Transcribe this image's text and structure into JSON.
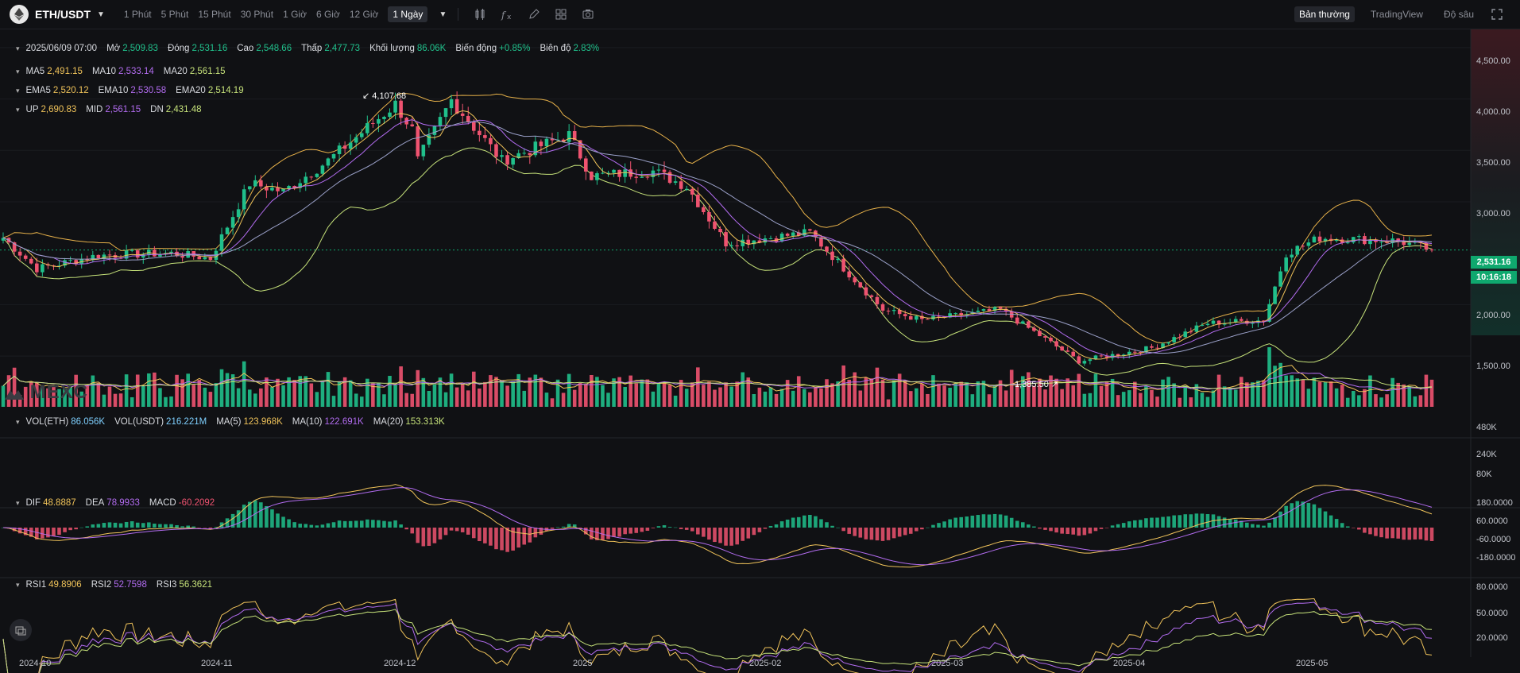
{
  "header": {
    "pair": "ETH/USDT",
    "intervals": [
      "1 Phút",
      "5 Phút",
      "15 Phút",
      "30 Phút",
      "1 Giờ",
      "6 Giờ",
      "12 Giờ",
      "1 Ngày"
    ],
    "active_interval": "1 Ngày",
    "views": [
      "Bản thường",
      "TradingView",
      "Độ sâu"
    ],
    "active_view": "Bản thường"
  },
  "ohlc": {
    "date": "2025/06/09 07:00",
    "open_label": "Mở",
    "open": "2,509.83",
    "close_label": "Đóng",
    "close": "2,531.16",
    "high_label": "Cao",
    "high": "2,548.66",
    "low_label": "Thấp",
    "low": "2,477.73",
    "volume_label": "Khối lượng",
    "volume": "86.06K",
    "change_label": "Biến động",
    "change": "+0.85%",
    "amplitude_label": "Biên độ",
    "amplitude": "2.83%"
  },
  "ma": {
    "ma5_label": "MA5",
    "ma5": "2,491.15",
    "ma10_label": "MA10",
    "ma10": "2,533.14",
    "ma20_label": "MA20",
    "ma20": "2,561.15"
  },
  "ema": {
    "ema5_label": "EMA5",
    "ema5": "2,520.12",
    "ema10_label": "EMA10",
    "ema10": "2,530.58",
    "ema20_label": "EMA20",
    "ema20": "2,514.19"
  },
  "boll": {
    "up_label": "UP",
    "up": "2,690.83",
    "mid_label": "MID",
    "mid": "2,561.15",
    "dn_label": "DN",
    "dn": "2,431.48"
  },
  "vol": {
    "eth_label": "VOL(ETH)",
    "eth": "86.056K",
    "usdt_label": "VOL(USDT)",
    "usdt": "216.221M",
    "ma5_label": "MA(5)",
    "ma5": "123.968K",
    "ma10_label": "MA(10)",
    "ma10": "122.691K",
    "ma20_label": "MA(20)",
    "ma20": "153.313K"
  },
  "macd": {
    "dif_label": "DIF",
    "dif": "48.8887",
    "dea_label": "DEA",
    "dea": "78.9933",
    "macd_label": "MACD",
    "macd": "-60.2092"
  },
  "rsi": {
    "rsi1_label": "RSI1",
    "rsi1": "49.8906",
    "rsi2_label": "RSI2",
    "rsi2": "52.7598",
    "rsi3_label": "RSI3",
    "rsi3": "56.3621"
  },
  "annotations": {
    "high_mark": "4,107.68",
    "low_mark": "1,385.50"
  },
  "current_price": "2,531.16",
  "countdown": "10:16:18",
  "watermark": "MEXC",
  "axes": {
    "price_ticks": [
      "4,500.00",
      "4,000.00",
      "3,500.00",
      "3,000.00",
      "2,000.00",
      "1,500.00"
    ],
    "volume_ticks": [
      "480K",
      "240K",
      "80K"
    ],
    "macd_ticks": [
      "180.0000",
      "60.0000",
      "-60.0000",
      "-180.0000"
    ],
    "rsi_ticks": [
      "80.0000",
      "50.0000",
      "20.0000"
    ],
    "date_ticks": [
      "2024-10",
      "2024-11",
      "2024-12",
      "2025",
      "2025-02",
      "2025-03",
      "2025-04",
      "2025-05"
    ]
  },
  "colors": {
    "up": "#20c08b",
    "down": "#ef5370",
    "ma5": "#f0c35a",
    "ma10": "#b26cf0",
    "ma20": "#c6e27a",
    "boll": "#e8b24a"
  },
  "chart_data": {
    "type": "candlestick",
    "anchors": [
      {
        "date": "2024-09-27",
        "close": 2650
      },
      {
        "date": "2024-10-03",
        "close": 2350
      },
      {
        "date": "2024-10-14",
        "close": 2480
      },
      {
        "date": "2024-10-27",
        "close": 2500
      },
      {
        "date": "2024-11-03",
        "close": 2450
      },
      {
        "date": "2024-11-10",
        "close": 3180
      },
      {
        "date": "2024-11-16",
        "close": 3100
      },
      {
        "date": "2024-11-24",
        "close": 3400
      },
      {
        "date": "2024-12-06",
        "close": 3950
      },
      {
        "date": "2024-12-09",
        "close": 3700
      },
      {
        "date": "2024-12-10",
        "close": 3400
      },
      {
        "date": "2024-12-16",
        "close": 3990
      },
      {
        "date": "2024-12-25",
        "close": 3400
      },
      {
        "date": "2025-01-06",
        "close": 3650
      },
      {
        "date": "2025-01-10",
        "close": 3250
      },
      {
        "date": "2025-01-21",
        "close": 3300
      },
      {
        "date": "2025-01-27",
        "close": 3150
      },
      {
        "date": "2025-02-03",
        "close": 2600
      },
      {
        "date": "2025-02-18",
        "close": 2700
      },
      {
        "date": "2025-02-25",
        "close": 2300
      },
      {
        "date": "2025-03-03",
        "close": 1950
      },
      {
        "date": "2025-03-10",
        "close": 1850
      },
      {
        "date": "2025-03-24",
        "close": 1950
      },
      {
        "date": "2025-04-07",
        "close": 1450
      },
      {
        "date": "2025-04-20",
        "close": 1580
      },
      {
        "date": "2025-04-30",
        "close": 1820
      },
      {
        "date": "2025-05-10",
        "close": 1850
      },
      {
        "date": "2025-05-14",
        "close": 2500
      },
      {
        "date": "2025-05-20",
        "close": 2650
      },
      {
        "date": "2025-06-03",
        "close": 2620
      },
      {
        "date": "2025-06-09",
        "close": 2531.16
      }
    ],
    "ylim": [
      1300,
      4700
    ]
  }
}
